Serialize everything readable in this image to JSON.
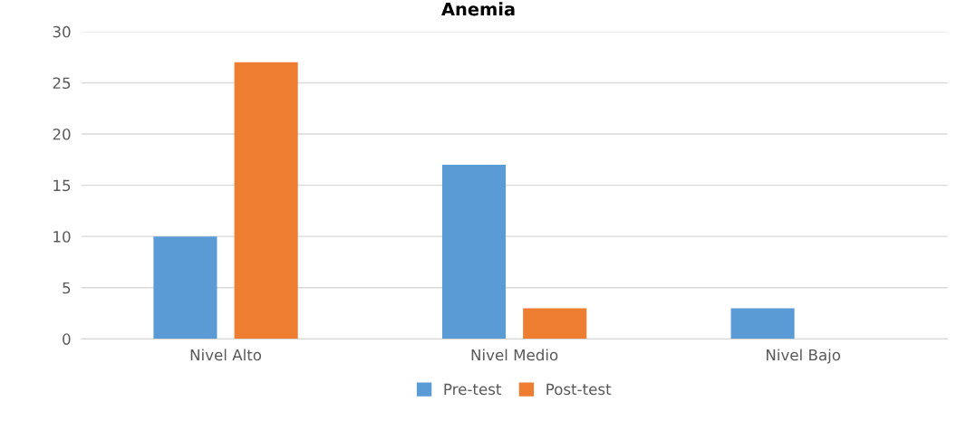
{
  "chart_data": {
    "type": "bar",
    "title": "Anemia",
    "categories": [
      "Nivel Alto",
      "Nivel Medio",
      "Nivel Bajo"
    ],
    "series": [
      {
        "name": "Pre-test",
        "color": "#5b9bd5",
        "values": [
          10,
          17,
          3
        ]
      },
      {
        "name": "Post-test",
        "color": "#ed7d31",
        "values": [
          27,
          3,
          0
        ]
      }
    ],
    "ylim": [
      0,
      30
    ],
    "yticks": [
      0,
      5,
      10,
      15,
      20,
      25,
      30
    ],
    "grid": "y",
    "legend": "bottom"
  }
}
